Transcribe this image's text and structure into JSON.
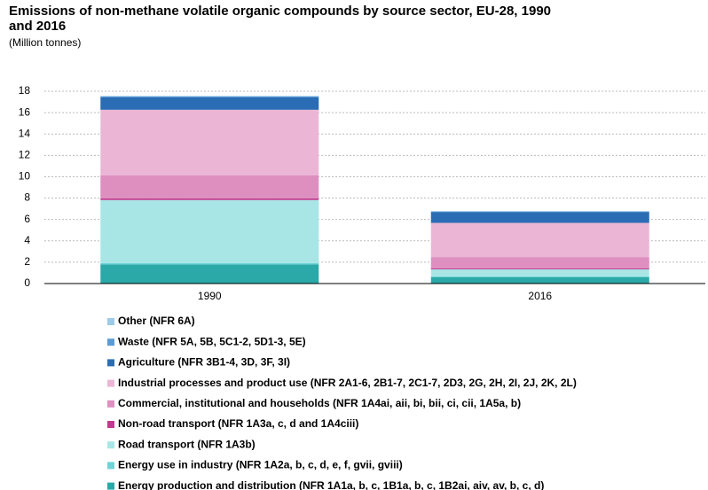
{
  "chart_data": {
    "type": "stacked_bar",
    "title": "Emissions of non-methane volatile organic compounds by source sector, EU-28, 1990 and 2016",
    "subtitle": "(Million tonnes)",
    "categories": [
      "1990",
      "2016"
    ],
    "series": [
      {
        "name": "Energy production and distribution (NFR 1A1a, b, c, 1B1a, b, c, 1B2ai, aiv, av, b, c, d)",
        "color": "#2aa9a8",
        "values": [
          1.8,
          0.58
        ]
      },
      {
        "name": "Energy use in industry (NFR 1A2a, b, c, d, e, f, gvii, gviii)",
        "color": "#6fd3d6",
        "values": [
          0.12,
          0.1
        ]
      },
      {
        "name": "Road transport (NFR 1A3b)",
        "color": "#a8e6e6",
        "values": [
          5.9,
          0.65
        ]
      },
      {
        "name": "Non-road transport (NFR 1A3a, c, d and 1A4ciii)",
        "color": "#c03a8f",
        "values": [
          0.15,
          0.1
        ]
      },
      {
        "name": "Commercial, institutional and households (NFR 1A4ai, aii, bi, bii, ci, cii, 1A5a, b)",
        "color": "#de8fbf",
        "values": [
          2.15,
          1.05
        ]
      },
      {
        "name": "Industrial processes and product use (NFR 2A1-6, 2B1-7, 2C1-7, 2D3, 2G, 2H, 2I, 2J, 2K, 2L)",
        "color": "#ebb6d6",
        "values": [
          6.15,
          3.2
        ]
      },
      {
        "name": "Agriculture (NFR 3B1-4, 3D, 3F, 3I)",
        "color": "#2a6db4",
        "values": [
          1.15,
          1.0
        ]
      },
      {
        "name": "Waste (NFR 5A, 5B, 5C1-2, 5D1-3, 5E)",
        "color": "#5b9bd5",
        "values": [
          0.1,
          0.07
        ]
      },
      {
        "name": "Other (NFR 6A)",
        "color": "#9ccbe8",
        "values": [
          0.05,
          0.03
        ]
      }
    ],
    "ylim": [
      0,
      18
    ],
    "yticks": [
      0,
      2,
      4,
      6,
      8,
      10,
      12,
      14,
      16,
      18
    ],
    "grid": true,
    "legend": "bottom"
  }
}
